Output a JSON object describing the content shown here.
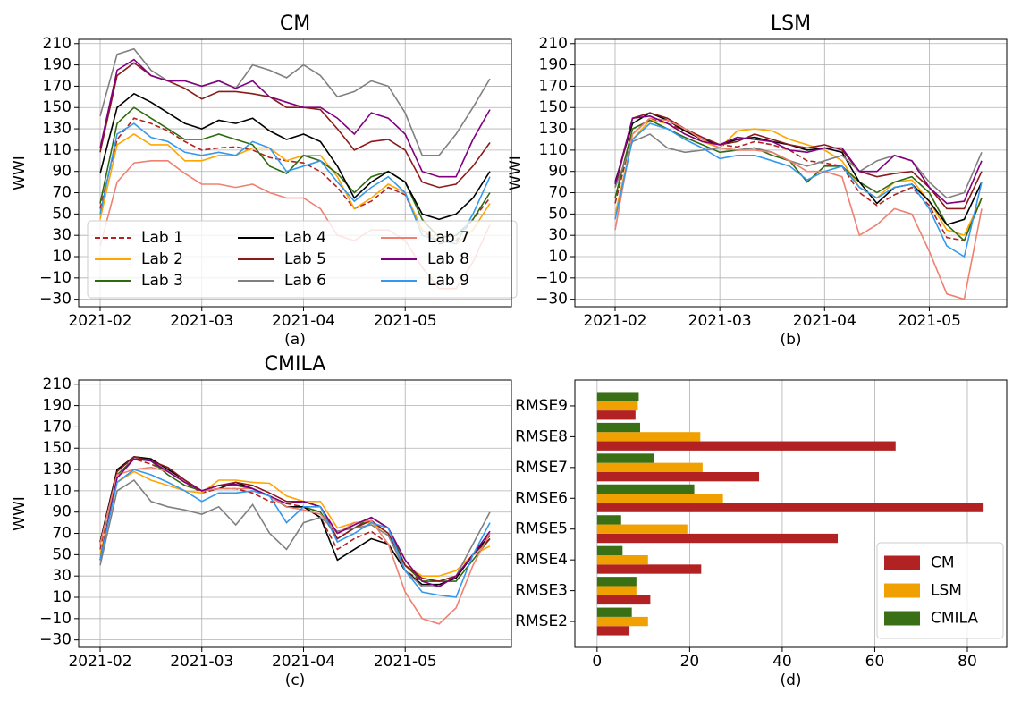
{
  "chart_data": [
    {
      "type": "line",
      "title": "CM",
      "x_label": "(a)",
      "y_label": "WWI",
      "categories": [
        "2021-02",
        null,
        null,
        null,
        null,
        null,
        "2021-03",
        null,
        null,
        null,
        null,
        null,
        "2021-04",
        null,
        null,
        null,
        null,
        null,
        "2021-05",
        null,
        null,
        null,
        null,
        null
      ],
      "ylim": [
        -37,
        214
      ],
      "yticks": [
        {
          "value": -30,
          "label": "−30"
        },
        {
          "value": -10,
          "label": "−10"
        },
        10,
        30,
        50,
        70,
        90,
        110,
        130,
        150,
        170,
        190,
        210
      ],
      "grid": true,
      "legend": "lower left",
      "series": [
        {
          "name": "Lab 1",
          "color": "#b22222",
          "dashed": true,
          "values": [
            55,
            120,
            140,
            135,
            128,
            118,
            110,
            112,
            113,
            110,
            103,
            100,
            98,
            90,
            75,
            55,
            62,
            75,
            68,
            35,
            22,
            25,
            45,
            65
          ]
        },
        {
          "name": "Lab 2",
          "color": "#ffa500",
          "values": [
            45,
            115,
            125,
            115,
            115,
            100,
            100,
            105,
            105,
            112,
            112,
            100,
            105,
            105,
            85,
            55,
            65,
            78,
            70,
            35,
            25,
            22,
            35,
            60
          ]
        },
        {
          "name": "Lab 3",
          "color": "#2e6b0f",
          "values": [
            60,
            135,
            150,
            140,
            130,
            120,
            120,
            125,
            120,
            115,
            95,
            88,
            105,
            100,
            88,
            70,
            85,
            90,
            80,
            45,
            28,
            30,
            45,
            70
          ]
        },
        {
          "name": "Lab 4",
          "color": "#000000",
          "values": [
            88,
            150,
            163,
            155,
            145,
            135,
            130,
            138,
            135,
            140,
            128,
            120,
            125,
            118,
            95,
            65,
            80,
            90,
            80,
            50,
            45,
            50,
            65,
            90
          ]
        },
        {
          "name": "Lab 5",
          "color": "#8b1a1a",
          "values": [
            108,
            180,
            192,
            180,
            175,
            168,
            158,
            165,
            165,
            163,
            160,
            150,
            150,
            148,
            130,
            110,
            118,
            120,
            110,
            80,
            75,
            78,
            95,
            117
          ]
        },
        {
          "name": "Lab 6",
          "color": "#808080",
          "values": [
            142,
            200,
            205,
            185,
            175,
            175,
            170,
            175,
            168,
            190,
            185,
            178,
            190,
            180,
            160,
            165,
            175,
            170,
            145,
            105,
            105,
            125,
            150,
            177
          ]
        },
        {
          "name": "Lab 7",
          "color": "#f08070",
          "values": [
            20,
            80,
            98,
            100,
            100,
            88,
            78,
            78,
            75,
            78,
            70,
            65,
            65,
            55,
            30,
            25,
            35,
            35,
            25,
            0,
            -20,
            -20,
            5,
            40
          ]
        },
        {
          "name": "Lab 8",
          "color": "#800080",
          "values": [
            112,
            185,
            195,
            180,
            175,
            175,
            170,
            175,
            168,
            175,
            160,
            155,
            150,
            150,
            140,
            125,
            145,
            140,
            125,
            90,
            85,
            85,
            120,
            148
          ]
        },
        {
          "name": "Lab 9",
          "color": "#3399ee",
          "values": [
            50,
            125,
            135,
            122,
            118,
            108,
            105,
            108,
            105,
            118,
            112,
            90,
            95,
            100,
            80,
            62,
            75,
            85,
            70,
            30,
            25,
            22,
            50,
            85
          ]
        }
      ]
    },
    {
      "type": "line",
      "title": "LSM",
      "x_label": "(b)",
      "y_label": "WWI",
      "categories": [
        "2021-02",
        null,
        null,
        null,
        null,
        null,
        "2021-03",
        null,
        null,
        null,
        null,
        null,
        "2021-04",
        null,
        null,
        null,
        null,
        null,
        "2021-05",
        null,
        null,
        null
      ],
      "ylim": [
        -37,
        214
      ],
      "yticks": [
        {
          "value": -30,
          "label": "−30"
        },
        {
          "value": -10,
          "label": "−10"
        },
        10,
        30,
        50,
        70,
        90,
        110,
        130,
        150,
        170,
        190,
        210
      ],
      "grid": true,
      "series": [
        {
          "name": "Lab 1",
          "color": "#b22222",
          "dashed": true,
          "values": [
            60,
            125,
            140,
            135,
            128,
            120,
            115,
            113,
            118,
            115,
            110,
            100,
            98,
            95,
            70,
            58,
            68,
            75,
            58,
            28,
            25,
            65
          ]
        },
        {
          "name": "Lab 2",
          "color": "#ffa500",
          "values": [
            50,
            120,
            138,
            135,
            125,
            118,
            112,
            128,
            130,
            128,
            120,
            115,
            110,
            100,
            75,
            65,
            80,
            82,
            62,
            35,
            30,
            65
          ]
        },
        {
          "name": "Lab 3",
          "color": "#2e6b0f",
          "values": [
            65,
            130,
            138,
            130,
            122,
            115,
            108,
            110,
            112,
            105,
            100,
            80,
            95,
            95,
            80,
            70,
            80,
            85,
            70,
            40,
            25,
            65
          ]
        },
        {
          "name": "Lab 4",
          "color": "#000000",
          "values": [
            80,
            135,
            145,
            138,
            128,
            120,
            115,
            120,
            122,
            118,
            115,
            110,
            112,
            108,
            80,
            60,
            75,
            78,
            62,
            40,
            45,
            80
          ]
        },
        {
          "name": "Lab 5",
          "color": "#8b1a1a",
          "values": [
            75,
            140,
            145,
            140,
            130,
            122,
            115,
            118,
            125,
            120,
            115,
            112,
            115,
            110,
            90,
            85,
            88,
            90,
            75,
            55,
            55,
            90
          ]
        },
        {
          "name": "Lab 6",
          "color": "#808080",
          "values": [
            75,
            118,
            125,
            112,
            108,
            110,
            112,
            110,
            112,
            108,
            100,
            95,
            100,
            105,
            90,
            100,
            105,
            100,
            80,
            65,
            70,
            108
          ]
        },
        {
          "name": "Lab 7",
          "color": "#f08070",
          "values": [
            35,
            125,
            140,
            138,
            130,
            120,
            112,
            110,
            110,
            108,
            100,
            90,
            90,
            85,
            30,
            40,
            55,
            50,
            15,
            -25,
            -30,
            55
          ]
        },
        {
          "name": "Lab 8",
          "color": "#800080",
          "values": [
            78,
            140,
            142,
            135,
            125,
            118,
            115,
            122,
            120,
            118,
            110,
            108,
            112,
            112,
            90,
            90,
            105,
            100,
            75,
            60,
            62,
            100
          ]
        },
        {
          "name": "Lab 9",
          "color": "#3399ee",
          "values": [
            45,
            120,
            135,
            130,
            120,
            112,
            102,
            105,
            105,
            100,
            95,
            82,
            90,
            95,
            75,
            65,
            75,
            78,
            55,
            20,
            10,
            80
          ]
        }
      ]
    },
    {
      "type": "line",
      "title": "CMILA",
      "x_label": "(c)",
      "y_label": "WWI",
      "categories": [
        "2021-02",
        null,
        null,
        null,
        null,
        null,
        "2021-03",
        null,
        null,
        null,
        null,
        null,
        "2021-04",
        null,
        null,
        null,
        null,
        null,
        "2021-05",
        null,
        null,
        null,
        null,
        null
      ],
      "ylim": [
        -37,
        214
      ],
      "yticks": [
        {
          "value": -30,
          "label": "−30"
        },
        {
          "value": -10,
          "label": "−10"
        },
        10,
        30,
        50,
        70,
        90,
        110,
        130,
        150,
        170,
        190,
        210
      ],
      "grid": true,
      "series": [
        {
          "name": "Lab 1",
          "color": "#b22222",
          "dashed": true,
          "values": [
            55,
            130,
            140,
            135,
            128,
            118,
            108,
            112,
            112,
            108,
            100,
            98,
            95,
            85,
            55,
            65,
            72,
            60,
            35,
            25,
            25,
            30,
            50,
            70
          ]
        },
        {
          "name": "Lab 2",
          "color": "#ffa500",
          "values": [
            50,
            118,
            128,
            120,
            115,
            110,
            108,
            120,
            120,
            118,
            117,
            105,
            100,
            100,
            75,
            80,
            80,
            70,
            40,
            30,
            30,
            35,
            50,
            58
          ]
        },
        {
          "name": "Lab 3",
          "color": "#2e6b0f",
          "values": [
            45,
            125,
            140,
            138,
            125,
            115,
            110,
            115,
            115,
            112,
            105,
            95,
            95,
            90,
            65,
            75,
            85,
            75,
            40,
            25,
            25,
            25,
            45,
            65
          ]
        },
        {
          "name": "Lab 4",
          "color": "#000000",
          "values": [
            62,
            130,
            142,
            140,
            130,
            120,
            110,
            112,
            118,
            112,
            105,
            95,
            95,
            85,
            45,
            55,
            65,
            60,
            35,
            22,
            22,
            28,
            50,
            68
          ]
        },
        {
          "name": "Lab 5",
          "color": "#8b1a1a",
          "values": [
            60,
            128,
            142,
            138,
            132,
            120,
            110,
            115,
            118,
            115,
            108,
            100,
            100,
            95,
            65,
            75,
            82,
            70,
            40,
            28,
            25,
            30,
            50,
            65
          ]
        },
        {
          "name": "Lab 6",
          "color": "#808080",
          "values": [
            40,
            110,
            120,
            100,
            95,
            92,
            88,
            95,
            78,
            97,
            70,
            55,
            80,
            85,
            72,
            75,
            78,
            68,
            35,
            20,
            20,
            30,
            60,
            90
          ]
        },
        {
          "name": "Lab 7",
          "color": "#f08070",
          "values": [
            60,
            125,
            130,
            132,
            128,
            118,
            110,
            112,
            112,
            112,
            105,
            95,
            92,
            88,
            70,
            80,
            82,
            60,
            15,
            -10,
            -15,
            0,
            40,
            70
          ]
        },
        {
          "name": "Lab 8",
          "color": "#800080",
          "values": [
            45,
            122,
            140,
            138,
            128,
            118,
            110,
            115,
            116,
            112,
            105,
            98,
            100,
            95,
            70,
            78,
            85,
            75,
            45,
            25,
            20,
            30,
            50,
            72
          ]
        },
        {
          "name": "Lab 9",
          "color": "#3399ee",
          "values": [
            45,
            118,
            130,
            125,
            118,
            110,
            100,
            108,
            108,
            110,
            105,
            80,
            95,
            95,
            62,
            70,
            80,
            75,
            35,
            15,
            12,
            10,
            50,
            80
          ]
        }
      ]
    },
    {
      "type": "barh",
      "x_label": "(d)",
      "categories": [
        "RMSE2",
        "RMSE3",
        "RMSE4",
        "RMSE5",
        "RMSE6",
        "RMSE7",
        "RMSE8",
        "RMSE9"
      ],
      "xlim": [
        -4.8,
        88.5
      ],
      "xticks": [
        0,
        20,
        40,
        60,
        80
      ],
      "grid": true,
      "legend": "lower right",
      "series": [
        {
          "name": "CM",
          "color": "#b22222",
          "values": [
            7,
            11.5,
            22.5,
            52,
            83.5,
            35,
            64.5,
            8.3
          ]
        },
        {
          "name": "LSM",
          "color": "#f0a000",
          "values": [
            11,
            8.5,
            11,
            19.5,
            27.2,
            22.8,
            22.3,
            8.8
          ]
        },
        {
          "name": "CMILA",
          "color": "#3a7015",
          "values": [
            7.5,
            8.5,
            5.5,
            5.2,
            21,
            12.2,
            9.3,
            9
          ]
        }
      ]
    }
  ]
}
